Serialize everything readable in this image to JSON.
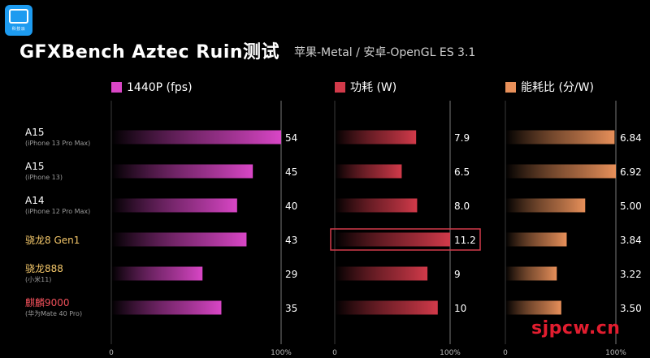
{
  "header": {
    "title": "GFXBench Aztec Ruin测试",
    "subtitle": "苹果-Metal / 安卓-OpenGL ES 3.1"
  },
  "logo": {
    "label": "科技派"
  },
  "watermark": "sjpcw.cn",
  "chart_data": [
    {
      "type": "bar",
      "orientation": "horizontal",
      "legend": "1440P (fps)",
      "color": "#d946c6",
      "categories": [
        "A15 (iPhone 13 Pro Max)",
        "A15 (iPhone 13)",
        "A14 (iPhone 12 Pro Max)",
        "骁龙8 Gen1",
        "骁龙888 (小米11)",
        "麒麟9000 (华为Mate 40 Pro)"
      ],
      "values": [
        54,
        45,
        40,
        43,
        29,
        35
      ],
      "value_labels": [
        "54",
        "45",
        "40",
        "43",
        "29",
        "35"
      ],
      "axis_min_label": "0",
      "axis_max_label": "100%",
      "xlim": [
        0,
        54
      ]
    },
    {
      "type": "bar",
      "orientation": "horizontal",
      "legend": "功耗 (W)",
      "color": "#d23a4a",
      "categories": [
        "A15 (iPhone 13 Pro Max)",
        "A15 (iPhone 13)",
        "A14 (iPhone 12 Pro Max)",
        "骁龙8 Gen1",
        "骁龙888 (小米11)",
        "麒麟9000 (华为Mate 40 Pro)"
      ],
      "values": [
        7.9,
        6.5,
        8.0,
        11.2,
        9,
        10
      ],
      "value_labels": [
        "7.9",
        "6.5",
        "8.0",
        "11.2",
        "9",
        "10"
      ],
      "highlight_index": 3,
      "axis_min_label": "0",
      "axis_max_label": "100%",
      "xlim": [
        0,
        11.2
      ]
    },
    {
      "type": "bar",
      "orientation": "horizontal",
      "legend": "能耗比 (分/W)",
      "color": "#e8905a",
      "categories": [
        "A15 (iPhone 13 Pro Max)",
        "A15 (iPhone 13)",
        "A14 (iPhone 12 Pro Max)",
        "骁龙8 Gen1",
        "骁龙888 (小米11)",
        "麒麟9000 (华为Mate 40 Pro)"
      ],
      "values": [
        6.84,
        6.92,
        5.0,
        3.84,
        3.22,
        3.5
      ],
      "value_labels": [
        "6.84",
        "6.92",
        "5.00",
        "3.84",
        "3.22",
        "3.50"
      ],
      "axis_min_label": "0",
      "axis_max_label": "100%",
      "xlim": [
        0,
        6.92
      ]
    }
  ],
  "rows": [
    {
      "name": "A15",
      "sub": "(iPhone 13 Pro Max)",
      "color": "#ffffff"
    },
    {
      "name": "A15",
      "sub": "(iPhone 13)",
      "color": "#ffffff"
    },
    {
      "name": "A14",
      "sub": "(iPhone 12 Pro Max)",
      "color": "#ffffff"
    },
    {
      "name": "骁龙8 Gen1",
      "sub": "",
      "color": "#f5c86a"
    },
    {
      "name": "骁龙888",
      "sub": "(小米11)",
      "color": "#f5c86a"
    },
    {
      "name": "麒麟9000",
      "sub": "(华为Mate 40 Pro)",
      "color": "#f0505a"
    }
  ]
}
